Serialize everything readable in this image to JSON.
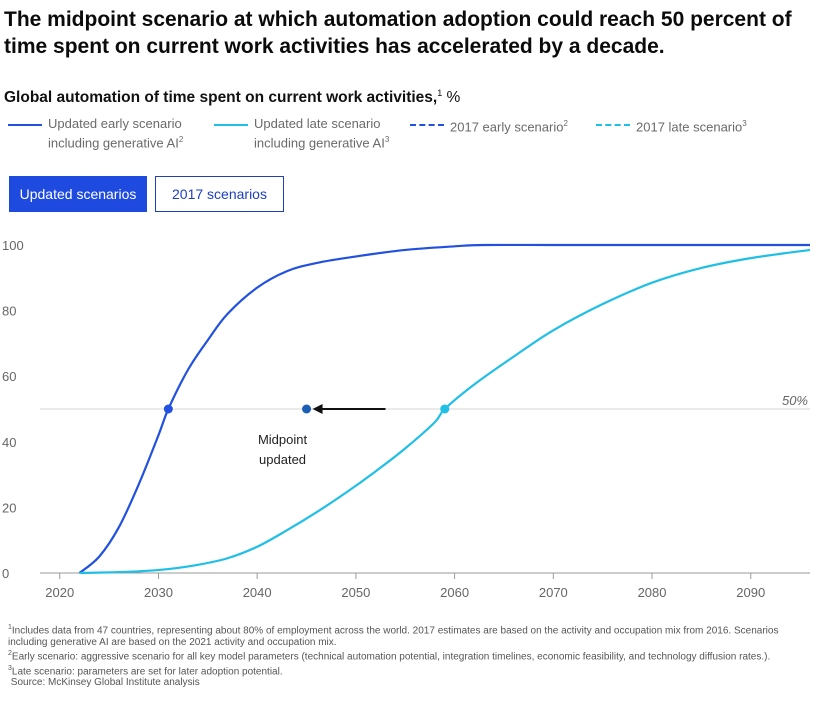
{
  "header": {
    "title": "The midpoint scenario at which automation adoption could reach 50 percent of time spent on current work activities has accelerated by a decade.",
    "subtitle": "Global automation of time spent on current work activities,",
    "subtitle_note": "1",
    "subtitle_unit": "%"
  },
  "legend": [
    {
      "line1": "Updated early scenario",
      "line2": "including generative AI",
      "note": "2",
      "color": "#2251e0",
      "dash": "solid"
    },
    {
      "line1": "Updated late scenario",
      "line2": "including generative AI",
      "note": "3",
      "color": "#1fbfe6",
      "dash": "solid"
    },
    {
      "line1": "2017 early scenario",
      "line2": "",
      "note": "2",
      "color": "#2251e0",
      "dash": "dashed"
    },
    {
      "line1": "2017 late scenario",
      "line2": "",
      "note": "3",
      "color": "#1fbfe6",
      "dash": "dashed"
    }
  ],
  "toggle": {
    "active": "Updated scenarios",
    "inactive": "2017 scenarios"
  },
  "chart_data": {
    "type": "line",
    "xlim": [
      2018,
      2096
    ],
    "ylim": [
      0,
      100
    ],
    "xticks": [
      2020,
      2030,
      2040,
      2050,
      2060,
      2070,
      2080,
      2090
    ],
    "yticks": [
      0,
      20,
      40,
      60,
      80,
      100
    ],
    "grid": false,
    "reference_line": {
      "y": 50,
      "label": "50%"
    },
    "series": [
      {
        "name": "Updated early scenario including generative AI",
        "color": "#2251e0",
        "x": [
          2022,
          2024,
          2026,
          2028,
          2030,
          2031,
          2033,
          2035,
          2037,
          2040,
          2043,
          2046,
          2050,
          2055,
          2060,
          2063,
          2070,
          2080,
          2090,
          2096
        ],
        "y": [
          0,
          5,
          14,
          27,
          42,
          50,
          62,
          71,
          79,
          87,
          92,
          94.5,
          96.5,
          98.5,
          99.6,
          100,
          100,
          100,
          100,
          100
        ]
      },
      {
        "name": "Updated late scenario including generative AI",
        "color": "#1fbfe6",
        "x": [
          2022,
          2025,
          2028,
          2031,
          2034,
          2037,
          2040,
          2043,
          2046,
          2049,
          2052,
          2055,
          2058,
          2059,
          2062,
          2066,
          2070,
          2075,
          2080,
          2085,
          2090,
          2096
        ],
        "y": [
          0,
          0.2,
          0.5,
          1.2,
          2.5,
          4.5,
          8,
          13,
          18.5,
          24.5,
          31,
          38,
          46,
          50,
          57.5,
          66,
          74,
          82,
          88.5,
          93,
          96,
          98.5
        ]
      }
    ],
    "midpoints": [
      {
        "x": 2031,
        "y": 50
      },
      {
        "x": 2059,
        "y": 50
      }
    ],
    "annotation": {
      "x": 2045,
      "y": 50,
      "arrow_from_x": 2053,
      "line1": "Midpoint",
      "line2": "updated"
    }
  },
  "footnotes": [
    {
      "note": "1",
      "text": "Includes data from 47 countries, representing about 80% of employment across the world. 2017 estimates are based on the activity and occupation mix from 2016. Scenarios including generative AI are based on the 2021 activity and occupation mix."
    },
    {
      "note": "2",
      "text": "Early scenario: aggressive scenario for all key model parameters (technical automation potential, integration timelines, economic feasibility, and technology diffusion rates.)."
    },
    {
      "note": "3",
      "text": "Late scenario: parameters are set for later adoption potential."
    },
    {
      "note": "",
      "text": "Source: McKinsey Global Institute analysis"
    }
  ]
}
